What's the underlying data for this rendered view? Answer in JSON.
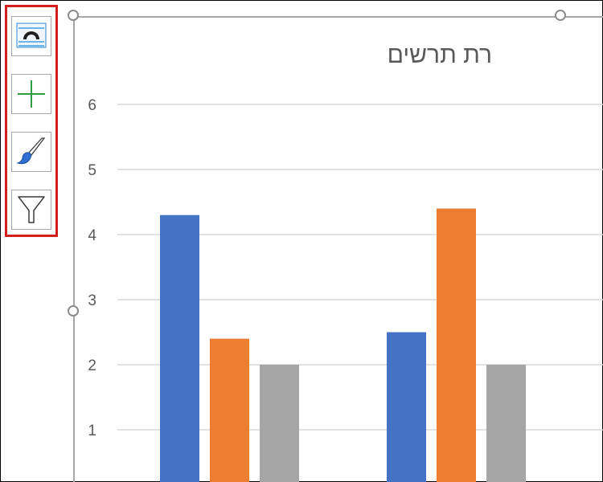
{
  "toolbar": {
    "items": [
      {
        "name": "chart-elements-icon"
      },
      {
        "name": "add-element-icon"
      },
      {
        "name": "chart-styles-brush-icon"
      },
      {
        "name": "chart-filter-icon"
      }
    ]
  },
  "colors": {
    "highlight": "#d11f1f",
    "series1": "#4472c4",
    "series2": "#ed7d31",
    "series3": "#a5a5a5",
    "gridline": "#d9d9d9"
  },
  "chart_data": {
    "type": "bar",
    "title": "רת תרשים",
    "categories": [
      "",
      ""
    ],
    "series": [
      {
        "values": [
          4.3,
          2.5
        ],
        "color": "#4472c4"
      },
      {
        "values": [
          2.4,
          4.4
        ],
        "color": "#ed7d31"
      },
      {
        "values": [
          2.0,
          2.0
        ],
        "color": "#a5a5a5"
      }
    ],
    "yticks": [
      "1",
      "2",
      "3",
      "4",
      "5",
      "6"
    ],
    "ylim": [
      0,
      6
    ],
    "grid": true
  }
}
